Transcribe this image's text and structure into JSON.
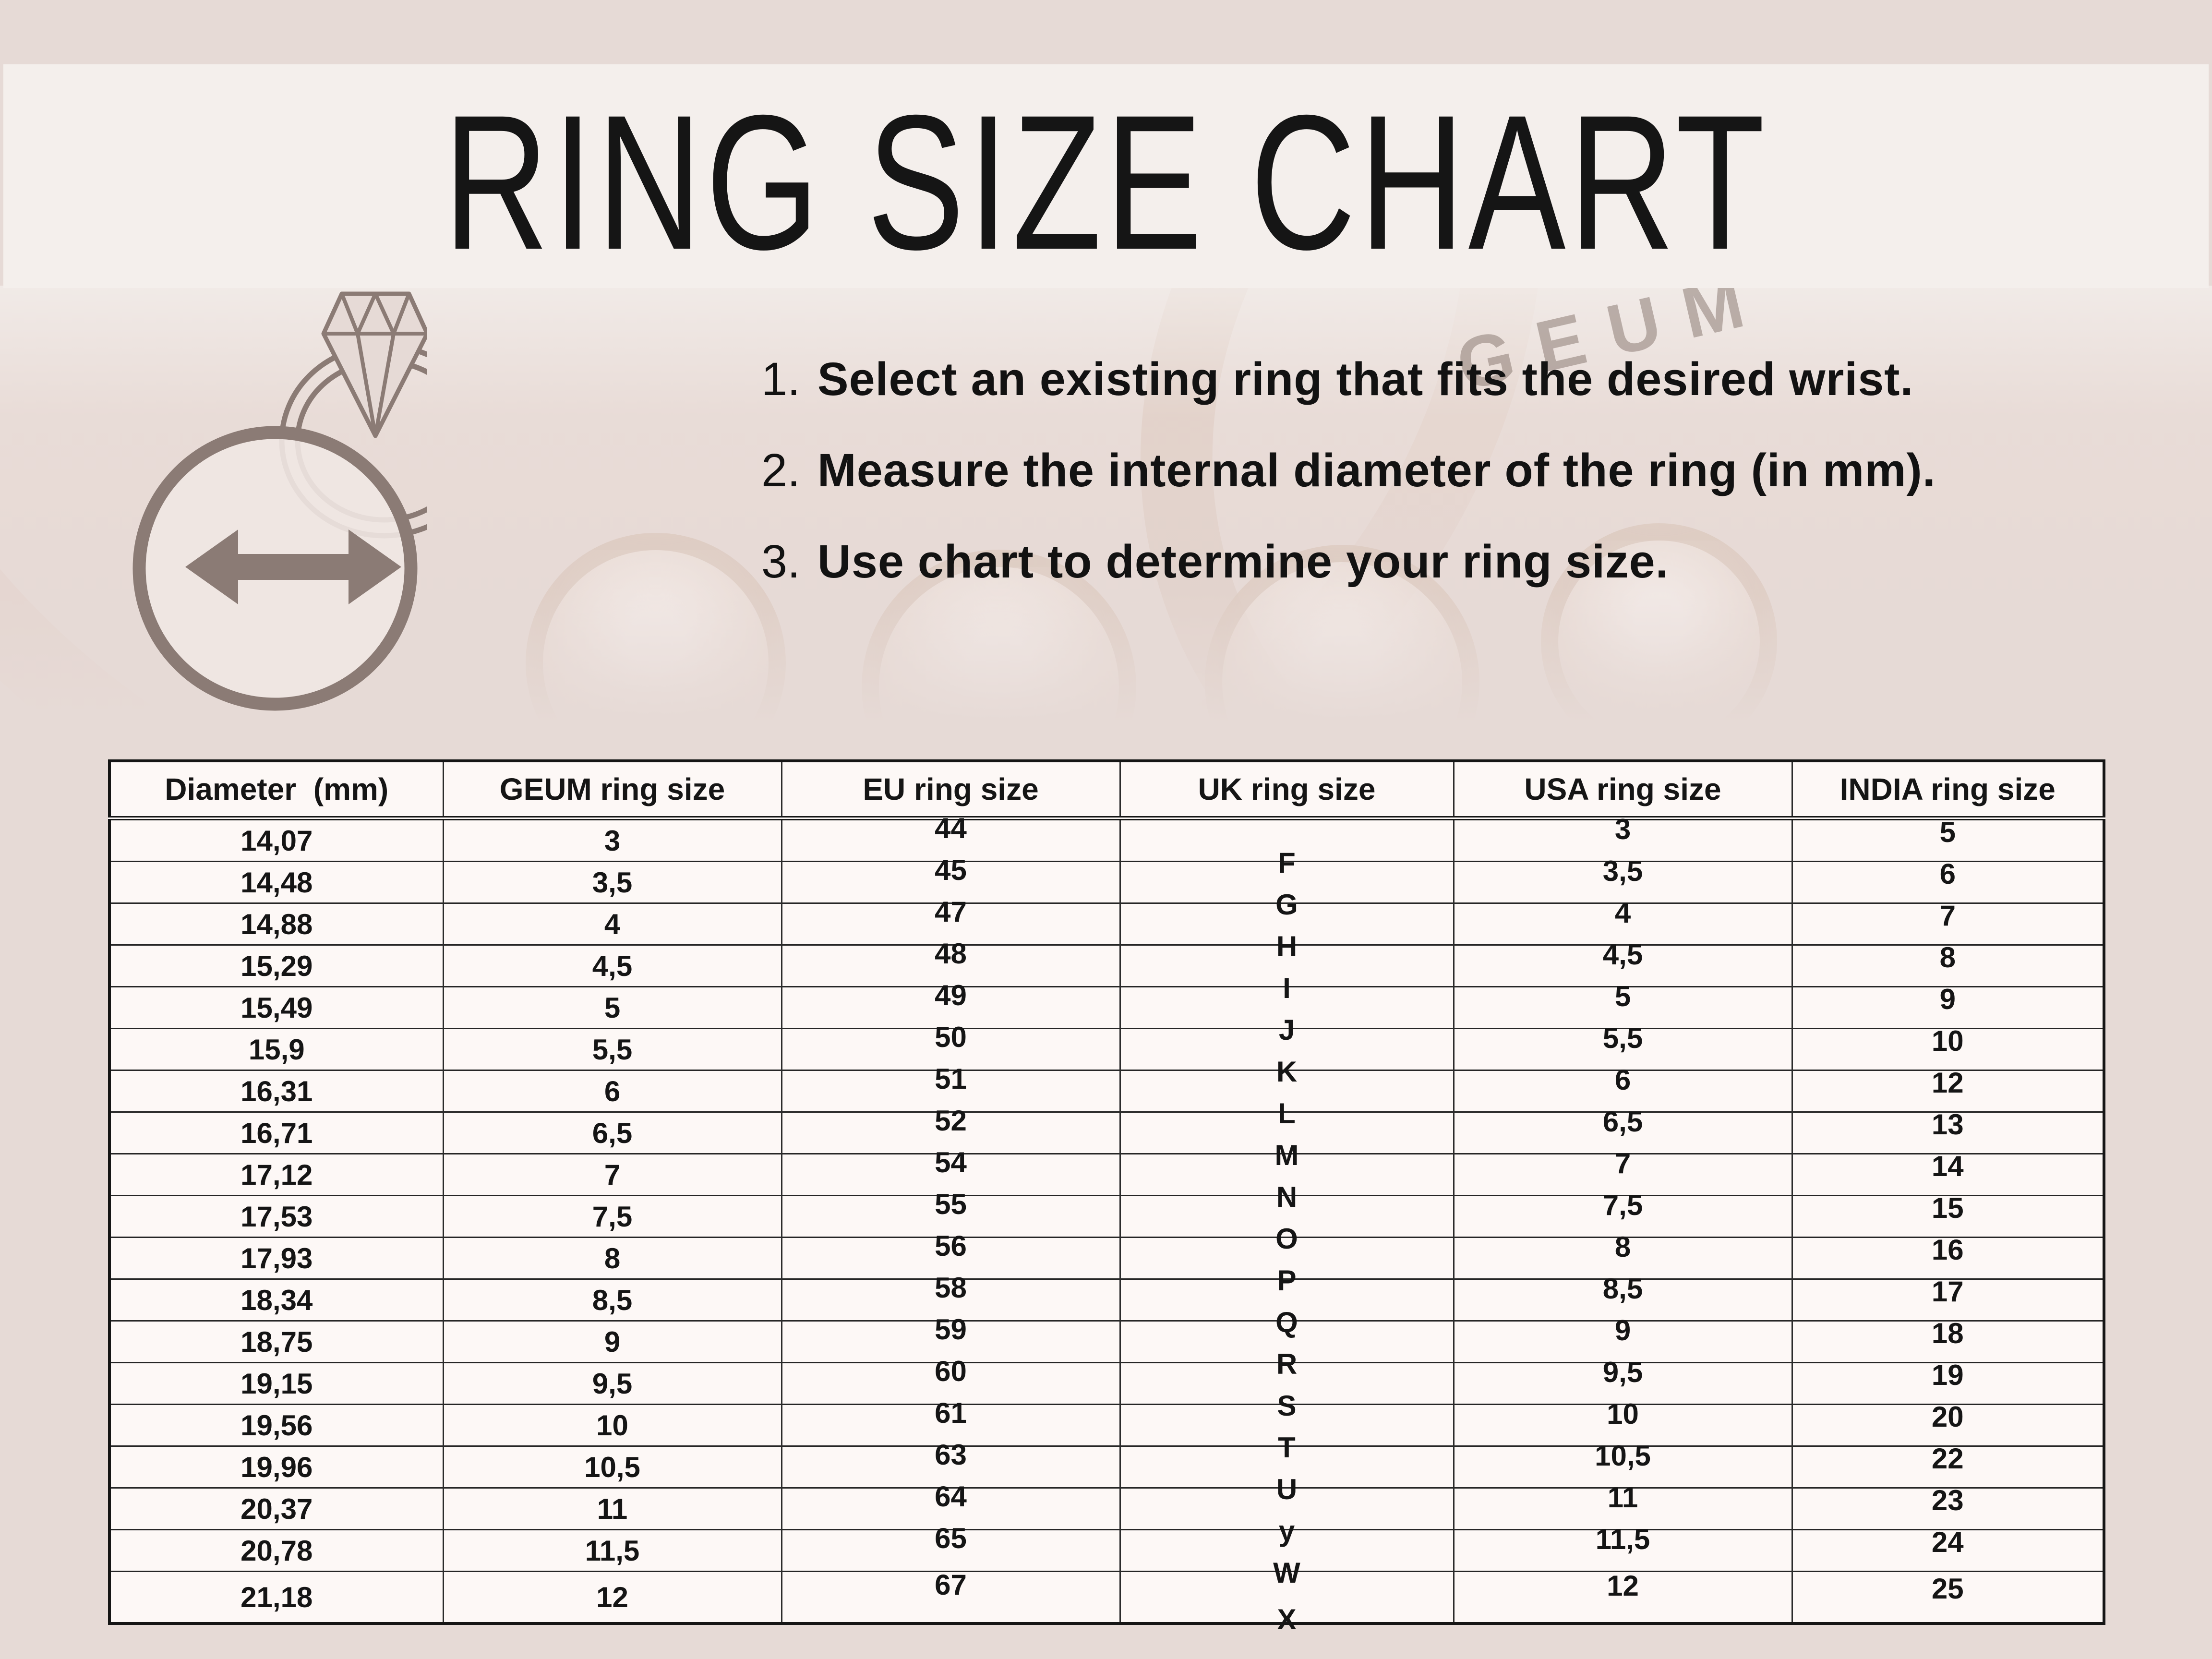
{
  "watermark": "GEUM",
  "instructions": [
    {
      "num": "1.",
      "text": "Select an existing ring that fits the desired wrist."
    },
    {
      "num": "2.",
      "text": "Measure the internal diameter of the ring (in mm)."
    },
    {
      "num": "3.",
      "text": "Use chart to determine your ring size."
    }
  ],
  "chart_data": {
    "type": "table",
    "title": "RING SIZE CHART",
    "columns": [
      "Diameter  (mm)",
      "GEUM ring size",
      "EU ring size",
      "UK ring size",
      "USA ring size",
      "INDIA ring size"
    ],
    "rows": [
      [
        "14,07",
        "3",
        "44",
        "F",
        "3",
        "5"
      ],
      [
        "14,48",
        "3,5",
        "45",
        "G",
        "3,5",
        "6"
      ],
      [
        "14,88",
        "4",
        "47",
        "H",
        "4",
        "7"
      ],
      [
        "15,29",
        "4,5",
        "48",
        "I",
        "4,5",
        "8"
      ],
      [
        "15,49",
        "5",
        "49",
        "J",
        "5",
        "9"
      ],
      [
        "15,9",
        "5,5",
        "50",
        "K",
        "5,5",
        "10"
      ],
      [
        "16,31",
        "6",
        "51",
        "L",
        "6",
        "12"
      ],
      [
        "16,71",
        "6,5",
        "52",
        "M",
        "6,5",
        "13"
      ],
      [
        "17,12",
        "7",
        "54",
        "N",
        "7",
        "14"
      ],
      [
        "17,53",
        "7,5",
        "55",
        "O",
        "7,5",
        "15"
      ],
      [
        "17,93",
        "8",
        "56",
        "P",
        "8",
        "16"
      ],
      [
        "18,34",
        "8,5",
        "58",
        "Q",
        "8,5",
        "17"
      ],
      [
        "18,75",
        "9",
        "59",
        "R",
        "9",
        "18"
      ],
      [
        "19,15",
        "9,5",
        "60",
        "S",
        "9,5",
        "19"
      ],
      [
        "19,56",
        "10",
        "61",
        "T",
        "10",
        "20"
      ],
      [
        "19,96",
        "10,5",
        "63",
        "U",
        "10,5",
        "22"
      ],
      [
        "20,37",
        "11",
        "64",
        "y",
        "11",
        "23"
      ],
      [
        "20,78",
        "11,5",
        "65",
        "W",
        "11,5",
        "24"
      ],
      [
        "21,18",
        "12",
        "67",
        "X",
        "12",
        "25"
      ]
    ]
  },
  "colors": {
    "background": "#e6dad6",
    "title_panel": "#f4efec",
    "table_background": "#fdf8f6",
    "text": "#151515",
    "icon_gray": "#8b7b75",
    "photo_tan": "#d2b7a6"
  }
}
